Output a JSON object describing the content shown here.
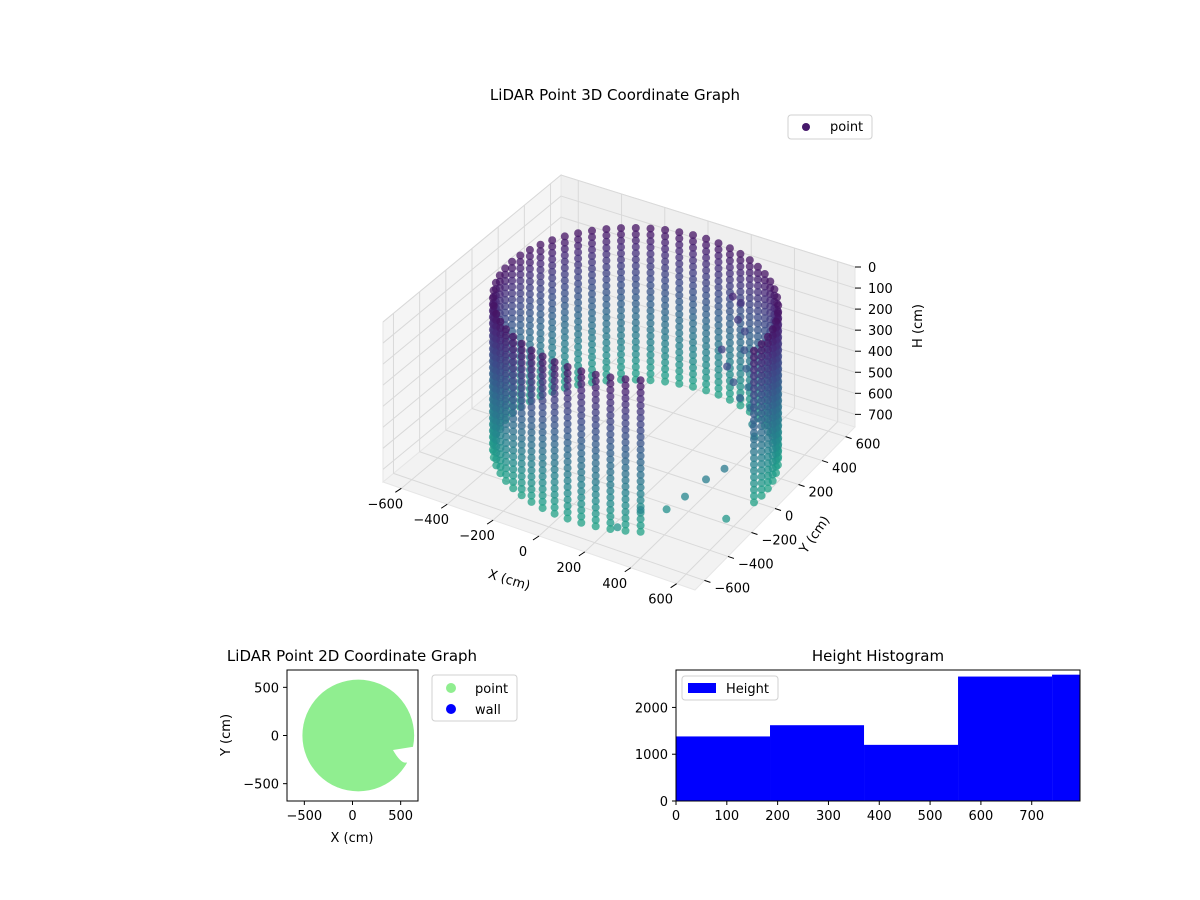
{
  "chart_data": [
    {
      "type": "scatter3d",
      "title": "LiDAR Point 3D Coordinate Graph",
      "xlabel": "X (cm)",
      "ylabel": "Y (cm)",
      "zlabel": "H (cm)",
      "x_ticks": [
        "−600",
        "−400",
        "−200",
        "0",
        "200",
        "400",
        "600"
      ],
      "y_ticks": [
        "−600",
        "−400",
        "−200",
        "0",
        "200",
        "400",
        "600"
      ],
      "z_ticks": [
        "0",
        "100",
        "200",
        "300",
        "400",
        "500",
        "600",
        "700"
      ],
      "xlim": [
        -680,
        680
      ],
      "ylim": [
        -680,
        680
      ],
      "zlim": [
        0,
        760
      ],
      "z_inverted": true,
      "legend": [
        {
          "label": "point",
          "color": "#46196b"
        }
      ],
      "legend_position": "upper-right",
      "colormap": "viridis",
      "grid": true,
      "series": [
        {
          "name": "point",
          "shape": "cylindrical wall of points",
          "center": [
            60,
            0
          ],
          "radius": 560,
          "height_range": [
            0,
            720
          ],
          "opening_angle_deg": [
            305,
            350
          ],
          "outliers": [
            {
              "x": 380,
              "y": -560,
              "h": 560
            },
            {
              "x": 480,
              "y": -380,
              "h": 560
            },
            {
              "x": 520,
              "y": -280,
              "h": 520
            },
            {
              "x": 420,
              "y": -420,
              "h": 620
            },
            {
              "x": 560,
              "y": -200,
              "h": 500
            },
            {
              "x": 620,
              "y": -300,
              "h": 660
            },
            {
              "x": 300,
              "y": -600,
              "h": 650
            }
          ],
          "interior_structure": [
            {
              "x": 300,
              "y": 350,
              "h": 80
            },
            {
              "x": 320,
              "y": 380,
              "h": 120
            },
            {
              "x": 340,
              "y": 320,
              "h": 160
            },
            {
              "x": 360,
              "y": 340,
              "h": 220
            },
            {
              "x": 380,
              "y": 300,
              "h": 280
            },
            {
              "x": 400,
              "y": 280,
              "h": 350
            },
            {
              "x": 420,
              "y": 260,
              "h": 420
            },
            {
              "x": 440,
              "y": 240,
              "h": 500
            },
            {
              "x": 460,
              "y": 220,
              "h": 560
            },
            {
              "x": 480,
              "y": 200,
              "h": 600
            },
            {
              "x": 360,
              "y": 150,
              "h": 200
            },
            {
              "x": 400,
              "y": 120,
              "h": 250
            },
            {
              "x": 440,
              "y": 100,
              "h": 300
            },
            {
              "x": 480,
              "y": 80,
              "h": 350
            }
          ]
        }
      ]
    },
    {
      "type": "scatter",
      "title": "LiDAR Point 2D Coordinate Graph",
      "xlabel": "X (cm)",
      "ylabel": "Y (cm)",
      "x_ticks": [
        "−500",
        "0",
        "500"
      ],
      "y_ticks": [
        "500",
        "0",
        "−500"
      ],
      "xlim": [
        -680,
        680
      ],
      "ylim": [
        -680,
        680
      ],
      "legend": [
        {
          "label": "point",
          "color": "#90ee90"
        },
        {
          "label": "wall",
          "color": "#0000ff"
        }
      ],
      "legend_position": "outside-right",
      "series": [
        {
          "name": "point",
          "color": "#90ee90",
          "shape": "filled disc",
          "center": [
            60,
            0
          ],
          "radius": 580
        },
        {
          "name": "wall",
          "color": "#0000ff",
          "values": []
        }
      ]
    },
    {
      "type": "bar",
      "title": "Height Histogram",
      "legend": [
        {
          "label": "Height",
          "color": "#0000ff"
        }
      ],
      "legend_position": "upper-left",
      "color": "#0000ff",
      "x_ticks": [
        "0",
        "100",
        "200",
        "300",
        "400",
        "500",
        "600",
        "700"
      ],
      "y_ticks": [
        "0",
        "1000",
        "2000"
      ],
      "xlim": [
        0,
        795
      ],
      "ylim": [
        0,
        2800
      ],
      "bins": [
        {
          "x0": 0,
          "x1": 185,
          "count": 1380
        },
        {
          "x0": 185,
          "x1": 370,
          "count": 1620
        },
        {
          "x0": 370,
          "x1": 555,
          "count": 1200
        },
        {
          "x0": 555,
          "x1": 740,
          "count": 2660
        },
        {
          "x0": 740,
          "x1": 795,
          "count": 2700
        }
      ]
    }
  ]
}
